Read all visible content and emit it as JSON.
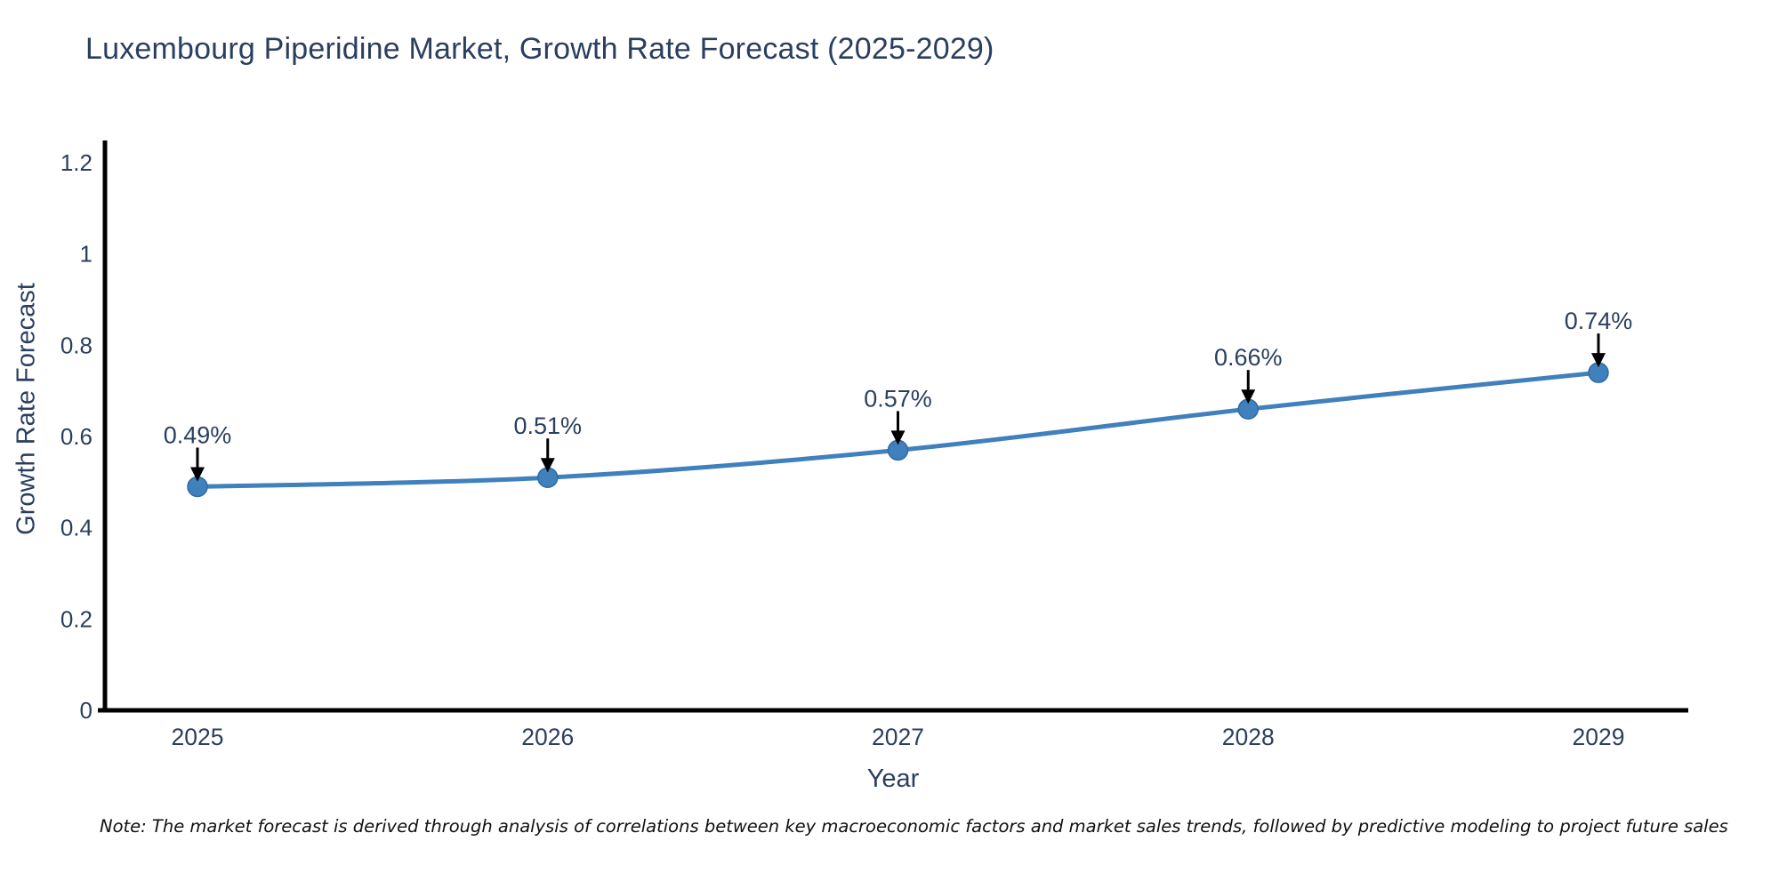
{
  "title": {
    "text": "Luxembourg Piperidine Market, Growth Rate Forecast (2025-2029)"
  },
  "note": {
    "text": "Note: The market forecast is derived through analysis of correlations between key macroeconomic factors and market sales trends, followed by predictive modeling to project future sales"
  },
  "chart_data": {
    "type": "line",
    "title": "Luxembourg Piperidine Market, Growth Rate Forecast (2025-2029)",
    "x": [
      "2025",
      "2026",
      "2027",
      "2028",
      "2029"
    ],
    "y": [
      0.49,
      0.51,
      0.57,
      0.66,
      0.74
    ],
    "point_labels": [
      "0.49%",
      "0.51%",
      "0.57%",
      "0.66%",
      "0.74%"
    ],
    "xlabel": "Year",
    "ylabel": "Growth Rate Forecast",
    "ylim": [
      0,
      1.2
    ],
    "yticks": [
      0,
      0.2,
      0.4,
      0.6,
      0.8,
      1,
      1.2
    ],
    "ytick_labels": [
      "0",
      "0.2",
      "0.4",
      "0.6",
      "0.8",
      "1",
      "1.2"
    ],
    "grid": false,
    "legend": "none",
    "annotations": "arrow-down-to-each-point",
    "colors": {
      "line": "#3f80bd",
      "marker": "#3f80bd",
      "marker_edge": "#2e6ca5",
      "axis": "#000000",
      "text": "#2a3f5f",
      "annotation_arrow": "#000000",
      "note_text": "#111111",
      "background": "#ffffff"
    }
  }
}
